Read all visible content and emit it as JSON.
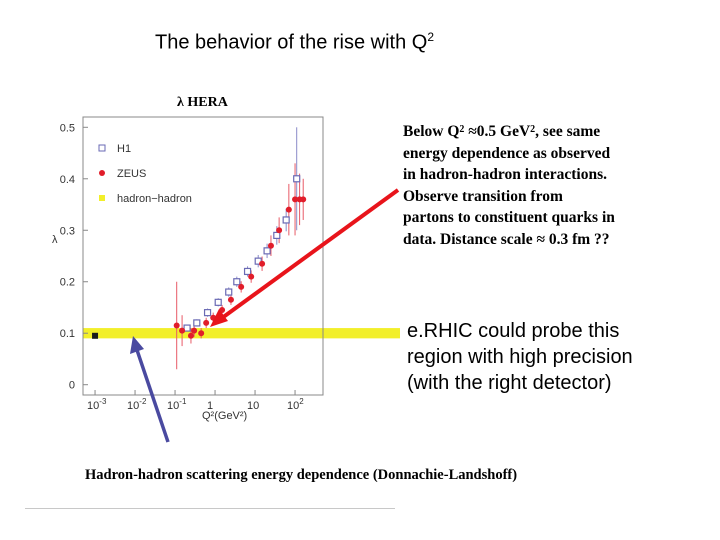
{
  "slide": {
    "title_main": "The behavior of the rise with Q",
    "title_sup": "2",
    "hera_label": "λ HERA",
    "note_top": {
      "l1a": "Below Q",
      "l1s1": "2",
      "l1b": " ≈0.5 GeV",
      "l1s2": "2",
      "l1c": ", see same",
      "l2": "energy dependence as observed",
      "l3": "in hadron-hadron interactions.",
      "l4": "Observe transition from",
      "l5": "partons to constituent quarks in",
      "l6": "data. Distance scale ≈ 0.3 fm ??"
    },
    "note_bottom": {
      "l1": "e.RHIC could probe this",
      "l2": "region with high precision",
      "l3": "(with the right detector)"
    },
    "caption": "Hadron-hadron scattering energy dependence (Donnachie-Landshoff)",
    "arrow_colors": {
      "red": "#e8141b",
      "blue": "#4a4aa0"
    }
  },
  "chart_data": {
    "type": "scatter",
    "title": "",
    "xlabel": "Q²(GeV²)",
    "ylabel": "λ",
    "xscale": "log",
    "xlim": [
      0.0005,
      500
    ],
    "ylim": [
      -0.02,
      0.52
    ],
    "x_ticks": [
      {
        "value": 0.001,
        "base": "10",
        "exp": "-3"
      },
      {
        "value": 0.01,
        "base": "10",
        "exp": "-2"
      },
      {
        "value": 0.1,
        "base": "10",
        "exp": "-1"
      },
      {
        "value": 1,
        "base": "1",
        "exp": ""
      },
      {
        "value": 10,
        "base": "10",
        "exp": ""
      },
      {
        "value": 100,
        "base": "10",
        "exp": "2"
      }
    ],
    "y_ticks": [
      {
        "value": 0,
        "label": "0"
      },
      {
        "value": 0.1,
        "label": "0.1"
      },
      {
        "value": 0.2,
        "label": "0.2"
      },
      {
        "value": 0.3,
        "label": "0.3"
      },
      {
        "value": 0.4,
        "label": "0.4"
      },
      {
        "value": 0.5,
        "label": "0.5"
      }
    ],
    "legend_position": "top-left",
    "hadron_band": {
      "name": "hadron−hadron",
      "y_low": 0.09,
      "y_high": 0.11,
      "color": "#f2ef2a"
    },
    "series": [
      {
        "name": "H1",
        "marker": "open-square",
        "color": "#6a6ab4",
        "points": [
          {
            "x": 0.2,
            "y": 0.11,
            "err": 0.006
          },
          {
            "x": 0.35,
            "y": 0.12,
            "err": 0.007
          },
          {
            "x": 0.65,
            "y": 0.14,
            "err": 0.008
          },
          {
            "x": 1.2,
            "y": 0.16,
            "err": 0.008
          },
          {
            "x": 2.2,
            "y": 0.18,
            "err": 0.009
          },
          {
            "x": 3.5,
            "y": 0.2,
            "err": 0.01
          },
          {
            "x": 6.5,
            "y": 0.22,
            "err": 0.01
          },
          {
            "x": 12,
            "y": 0.24,
            "err": 0.012
          },
          {
            "x": 20,
            "y": 0.26,
            "err": 0.014
          },
          {
            "x": 35,
            "y": 0.29,
            "err": 0.018
          },
          {
            "x": 60,
            "y": 0.32,
            "err": 0.022
          },
          {
            "x": 110,
            "y": 0.4,
            "err": 0.1
          }
        ]
      },
      {
        "name": "ZEUS",
        "marker": "filled-circle",
        "color": "#e11d2a",
        "points": [
          {
            "x": 0.11,
            "y": 0.115,
            "err": 0.085
          },
          {
            "x": 0.15,
            "y": 0.105,
            "err": 0.03
          },
          {
            "x": 0.25,
            "y": 0.095,
            "err": 0.015
          },
          {
            "x": 0.3,
            "y": 0.105,
            "err": 0.012
          },
          {
            "x": 0.45,
            "y": 0.1,
            "err": 0.01
          },
          {
            "x": 0.6,
            "y": 0.12,
            "err": 0.01
          },
          {
            "x": 0.9,
            "y": 0.13,
            "err": 0.01
          },
          {
            "x": 1.5,
            "y": 0.145,
            "err": 0.01
          },
          {
            "x": 2.5,
            "y": 0.165,
            "err": 0.01
          },
          {
            "x": 4.5,
            "y": 0.19,
            "err": 0.011
          },
          {
            "x": 8,
            "y": 0.21,
            "err": 0.012
          },
          {
            "x": 15,
            "y": 0.235,
            "err": 0.014
          },
          {
            "x": 25,
            "y": 0.27,
            "err": 0.02
          },
          {
            "x": 40,
            "y": 0.3,
            "err": 0.025
          },
          {
            "x": 70,
            "y": 0.34,
            "err": 0.05
          },
          {
            "x": 100,
            "y": 0.36,
            "err": 0.07
          },
          {
            "x": 130,
            "y": 0.36,
            "err": 0.05
          },
          {
            "x": 160,
            "y": 0.36,
            "err": 0.04
          }
        ]
      },
      {
        "name": "hadron−hadron",
        "marker": "filled-square",
        "color": "#1a1a1a",
        "points": [
          {
            "x": 0.001,
            "y": 0.095
          }
        ]
      }
    ]
  }
}
